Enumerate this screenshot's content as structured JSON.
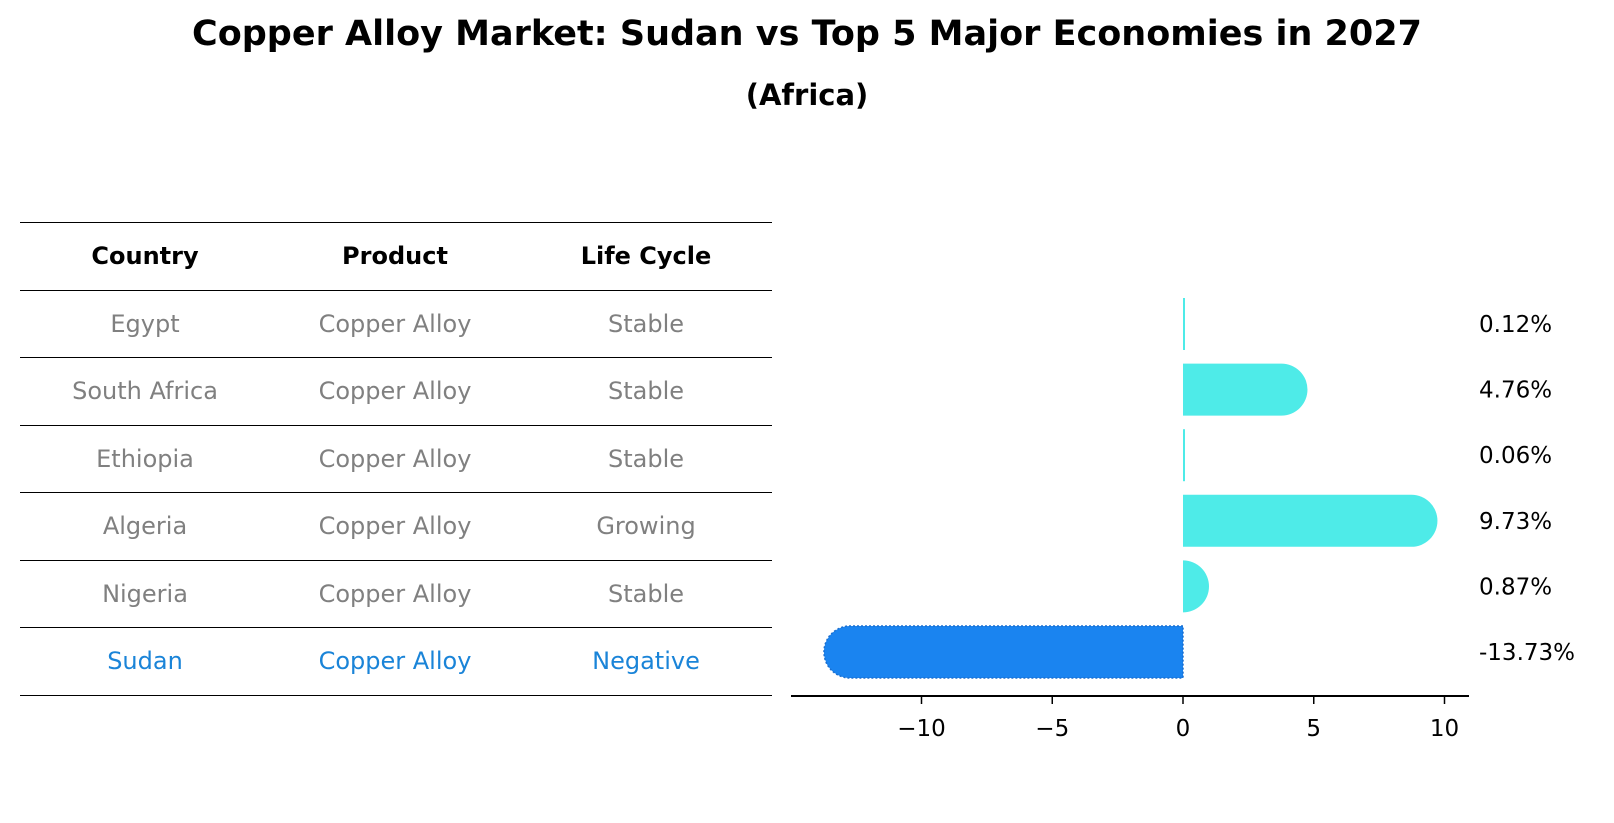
{
  "title": "Copper Alloy Market: Sudan vs Top 5 Major Economies in 2027",
  "subtitle": "(Africa)",
  "table": {
    "headers": [
      "Country",
      "Product",
      "Life Cycle"
    ],
    "rows": [
      {
        "country": "Egypt",
        "product": "Copper Alloy",
        "life_cycle": "Stable",
        "highlight": false
      },
      {
        "country": "South Africa",
        "product": "Copper Alloy",
        "life_cycle": "Stable",
        "highlight": false
      },
      {
        "country": "Ethiopia",
        "product": "Copper Alloy",
        "life_cycle": "Stable",
        "highlight": false
      },
      {
        "country": "Algeria",
        "product": "Copper Alloy",
        "life_cycle": "Growing",
        "highlight": false
      },
      {
        "country": "Nigeria",
        "product": "Copper Alloy",
        "life_cycle": "Stable",
        "highlight": false
      },
      {
        "country": "Sudan",
        "product": "Copper Alloy",
        "life_cycle": "Negative",
        "highlight": true
      }
    ]
  },
  "colors": {
    "bar_default": "#4EEBE8",
    "bar_highlight": "#1A84F0",
    "text_grey": "#808080",
    "text_highlight": "#1A84D8"
  },
  "chart_data": {
    "type": "bar",
    "orientation": "horizontal",
    "title": "Copper Alloy Market: Sudan vs Top 5 Major Economies in 2027",
    "subtitle": "(Africa)",
    "categories": [
      "Egypt",
      "South Africa",
      "Ethiopia",
      "Algeria",
      "Nigeria",
      "Sudan"
    ],
    "values": [
      0.12,
      4.76,
      0.06,
      9.73,
      0.87,
      -13.73
    ],
    "value_labels": [
      "0.12%",
      "4.76%",
      "0.06%",
      "9.73%",
      "0.87%",
      "-13.73%"
    ],
    "xlabel": "",
    "ylabel": "",
    "xticks": [
      -10,
      -5,
      0,
      5,
      10
    ],
    "xtick_labels": [
      "−10",
      "−5",
      "0",
      "5",
      "10"
    ],
    "xlim": [
      -14.9,
      10.9
    ],
    "grid": false,
    "legend": null,
    "highlight_category": "Sudan"
  }
}
